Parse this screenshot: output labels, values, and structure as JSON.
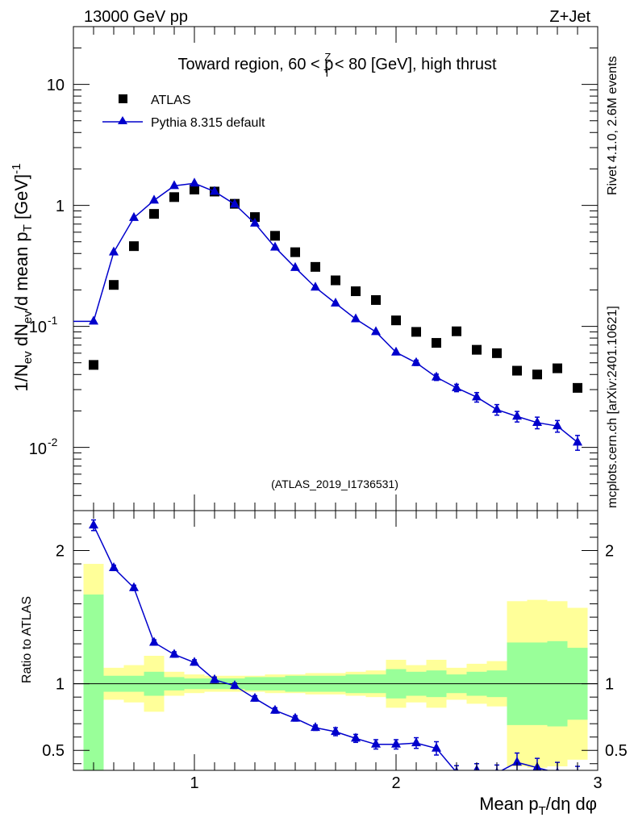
{
  "header": {
    "left": "13000 GeV pp",
    "right": "Z+Jet"
  },
  "side_text": {
    "rivet": "Rivet 4.1.0,  2.6M events",
    "source": "mcplots.cern.ch [arXiv:2401.10621]"
  },
  "colors": {
    "atlas": "#000000",
    "pythia": "#0000cc",
    "band_inner": "#99ff99",
    "band_outer": "#ffff99",
    "side_text": "#808080",
    "watermark": "#999999"
  },
  "chart_data": [
    {
      "type": "scatter",
      "title": "Toward region, 60 < p_T^Z < 80 [GeV], high thrust",
      "title_parts": {
        "pre": "Toward region, 60 < p",
        "sup": "Z",
        "sub": "T",
        "post": " < 80 [GeV], high thrust"
      },
      "ylabel": "1/N_ev dN_ev/d mean p_T [GeV]^-1",
      "ylabel_parts": {
        "a": "1/N",
        "a_sub": "ev",
        "b": " dN",
        "b_sub": "ev",
        "c": "/d mean p",
        "c_sub": "T",
        "d": " [GeV]",
        "d_sup": "-1"
      },
      "yscale": "log",
      "ylim": [
        0.003,
        30
      ],
      "xlim": [
        0.4,
        3.0
      ],
      "y_tick_labels": {
        "t10": "10",
        "t1": "1",
        "t01": "10",
        "t01_sup": "-1",
        "t001": "10",
        "t001_sup": "-2"
      },
      "watermark": "(ATLAS_2019_I1736531)",
      "legend": {
        "position": "top-left",
        "entries": [
          "ATLAS",
          "Pythia 8.315 default"
        ]
      },
      "series": [
        {
          "name": "ATLAS",
          "marker": "square",
          "x": [
            0.5,
            0.6,
            0.7,
            0.8,
            0.9,
            1.0,
            1.1,
            1.2,
            1.3,
            1.4,
            1.5,
            1.6,
            1.7,
            1.8,
            1.9,
            2.0,
            2.1,
            2.2,
            2.3,
            2.4,
            2.5,
            2.6,
            2.7,
            2.8,
            2.9
          ],
          "y": [
            0.048,
            0.22,
            0.46,
            0.85,
            1.17,
            1.35,
            1.3,
            1.03,
            0.8,
            0.56,
            0.41,
            0.31,
            0.24,
            0.195,
            0.165,
            0.112,
            0.09,
            0.073,
            0.091,
            0.064,
            0.06,
            0.043,
            0.04,
            0.045,
            0.031
          ]
        },
        {
          "name": "Pythia 8.315 default",
          "marker": "triangle",
          "x": [
            0.5,
            0.6,
            0.7,
            0.8,
            0.9,
            1.0,
            1.1,
            1.2,
            1.3,
            1.4,
            1.5,
            1.6,
            1.7,
            1.8,
            1.9,
            2.0,
            2.1,
            2.2,
            2.3,
            2.4,
            2.5,
            2.6,
            2.7,
            2.8,
            2.9
          ],
          "y": [
            0.11,
            0.41,
            0.79,
            1.1,
            1.45,
            1.52,
            1.3,
            1.02,
            0.71,
            0.45,
            0.305,
            0.21,
            0.155,
            0.115,
            0.09,
            0.061,
            0.05,
            0.038,
            0.031,
            0.026,
            0.0205,
            0.018,
            0.016,
            0.015,
            0.011
          ],
          "yerr_frac": [
            0.03,
            0.02,
            0.02,
            0.02,
            0.02,
            0.02,
            0.02,
            0.02,
            0.02,
            0.02,
            0.02,
            0.02,
            0.03,
            0.03,
            0.04,
            0.04,
            0.05,
            0.06,
            0.07,
            0.09,
            0.1,
            0.1,
            0.11,
            0.11,
            0.14
          ]
        }
      ]
    },
    {
      "type": "line",
      "ylabel": "Ratio to ATLAS",
      "xlabel": "Mean p_T/dη dφ",
      "xlabel_parts": {
        "a": "Mean p",
        "a_sub": "T",
        "b": "/dη dφ"
      },
      "xlim": [
        0.4,
        3.0
      ],
      "ylim": [
        0.35,
        2.3
      ],
      "x_ticks": [
        1,
        2,
        3
      ],
      "x_tick_labels": [
        "1",
        "2",
        "3"
      ],
      "y_ticks": [
        0.5,
        1,
        2
      ],
      "y_tick_labels": [
        "0.5",
        "1",
        "2"
      ],
      "reference_line": 1,
      "bins": [
        0.45,
        0.55,
        0.65,
        0.75,
        0.85,
        0.95,
        1.05,
        1.15,
        1.25,
        1.35,
        1.45,
        1.55,
        1.65,
        1.75,
        1.85,
        1.95,
        2.05,
        2.15,
        2.25,
        2.35,
        2.45,
        2.55,
        2.65,
        2.75,
        2.85,
        2.95
      ],
      "band_inner_halfwidth": [
        0.67,
        0.06,
        0.06,
        0.09,
        0.05,
        0.04,
        0.04,
        0.04,
        0.05,
        0.05,
        0.06,
        0.06,
        0.06,
        0.07,
        0.07,
        0.11,
        0.09,
        0.1,
        0.07,
        0.09,
        0.1,
        0.31,
        0.31,
        0.32,
        0.27,
        0.43
      ],
      "band_outer_halfwidth": [
        0.9,
        0.12,
        0.14,
        0.21,
        0.09,
        0.07,
        0.06,
        0.06,
        0.06,
        0.07,
        0.07,
        0.08,
        0.08,
        0.09,
        0.1,
        0.18,
        0.14,
        0.18,
        0.12,
        0.15,
        0.17,
        0.62,
        0.63,
        0.62,
        0.57,
        0.68
      ],
      "series": [
        {
          "name": "Pythia 8.315 default",
          "x": [
            0.5,
            0.6,
            0.7,
            0.8,
            0.9,
            1.0,
            1.1,
            1.2,
            1.3,
            1.4,
            1.5,
            1.6,
            1.7,
            1.8,
            1.9,
            2.0,
            2.1,
            2.2,
            2.3,
            2.4,
            2.5,
            2.6,
            2.7,
            2.8,
            2.9
          ],
          "y": [
            2.19,
            1.87,
            1.72,
            1.31,
            1.22,
            1.16,
            1.03,
            0.985,
            0.89,
            0.8,
            0.74,
            0.67,
            0.64,
            0.59,
            0.545,
            0.545,
            0.555,
            0.515,
            0.335,
            0.35,
            0.33,
            0.41,
            0.37,
            0.33,
            0.3
          ],
          "yerr": [
            0.04,
            0.02,
            0.02,
            0.02,
            0.02,
            0.02,
            0.02,
            0.02,
            0.02,
            0.02,
            0.02,
            0.02,
            0.03,
            0.03,
            0.035,
            0.035,
            0.04,
            0.05,
            0.05,
            0.05,
            0.06,
            0.07,
            0.07,
            0.08,
            0.08
          ]
        }
      ]
    }
  ]
}
